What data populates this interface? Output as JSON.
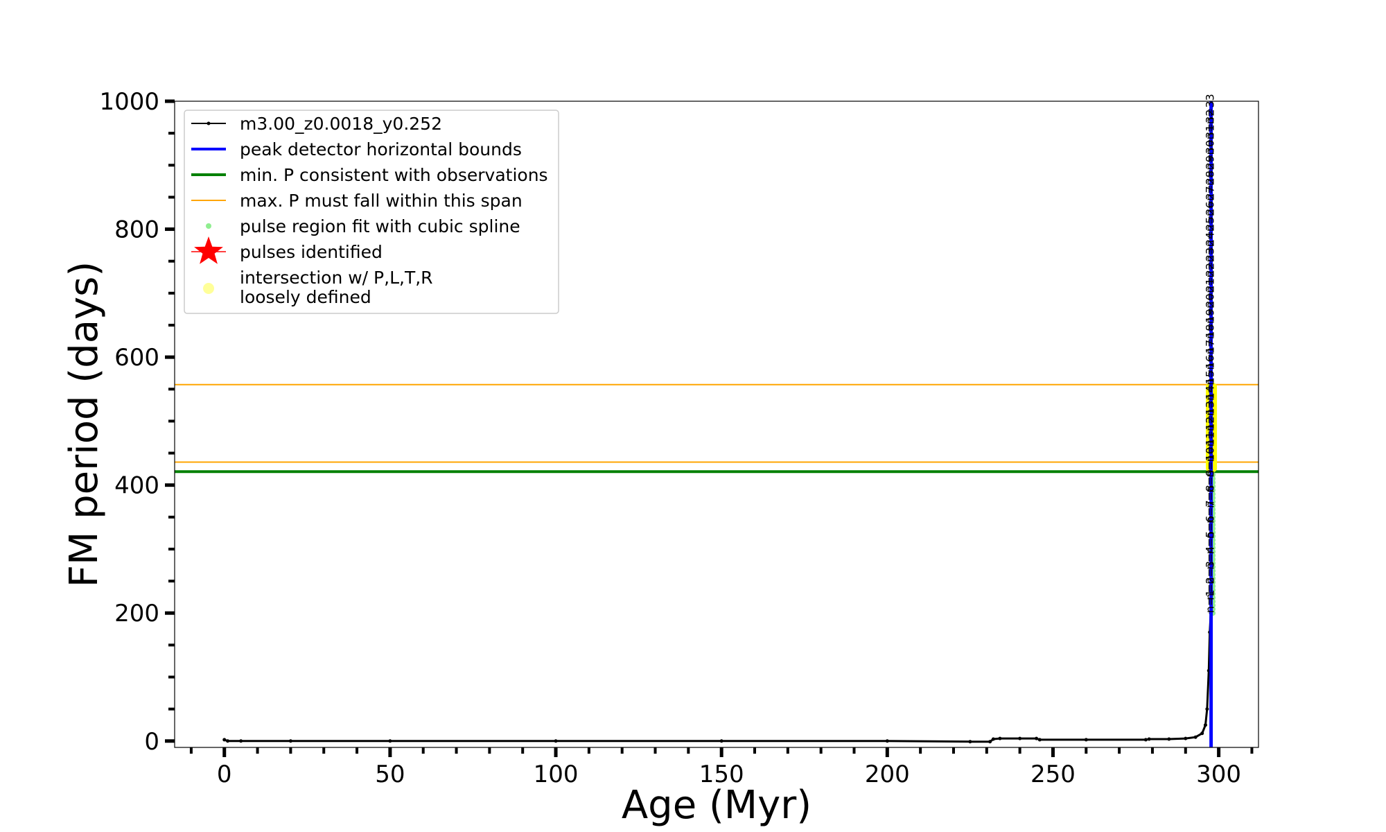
{
  "chart_data": {
    "type": "line",
    "xlabel": "Age (Myr)",
    "ylabel": "FM period (days)",
    "xlim": [
      -15,
      312
    ],
    "ylim": [
      -10,
      1000
    ],
    "x_ticks": [
      0,
      50,
      100,
      150,
      200,
      250,
      300
    ],
    "y_ticks": [
      0,
      200,
      400,
      600,
      800,
      1000
    ],
    "grid": false,
    "legend_position": "top-left",
    "legend": [
      {
        "label": "m3.00_z0.0018_y0.252",
        "color": "#000000",
        "marker": "line-dot"
      },
      {
        "label": "peak detector horizontal bounds",
        "color": "#0000ff",
        "marker": "line"
      },
      {
        "label": "min. P consistent with observations",
        "color": "#008000",
        "marker": "line"
      },
      {
        "label": "max. P must fall within this span",
        "color": "#ffa500",
        "marker": "thin-line"
      },
      {
        "label": "pulse region fit with cubic spline",
        "color": "#90ee90",
        "marker": "dot"
      },
      {
        "label": "pulses identified",
        "color": "#ff0000",
        "marker": "star"
      },
      {
        "label": "intersection w/ P,L,T,R",
        "label2": "loosely defined",
        "color": "#ffff99",
        "marker": "circle"
      }
    ],
    "series": [
      {
        "name": "m3.00_z0.0018_y0.252",
        "color": "#000000",
        "x": [
          0,
          1,
          5,
          20,
          50,
          100,
          150,
          200,
          225,
          231,
          232,
          234,
          240,
          245,
          246,
          260,
          278,
          279,
          285,
          290,
          293,
          295,
          296,
          296.5,
          297,
          297.3,
          297.6
        ],
        "y": [
          2,
          0,
          0,
          0,
          0,
          0,
          0,
          0,
          -1,
          -1,
          3,
          4,
          4,
          4,
          2,
          2,
          2,
          3,
          3,
          4,
          6,
          12,
          25,
          50,
          110,
          170,
          200
        ]
      }
    ],
    "vertical_bounds": {
      "label": "peak detector horizontal bounds",
      "color": "#0000ff",
      "x": [
        297.5,
        297.9
      ]
    },
    "min_period": {
      "label": "min. P consistent with observations",
      "color": "#008000",
      "y": 421
    },
    "max_period_span": {
      "label": "max. P must fall within this span",
      "color": "#ffa500",
      "y": [
        436,
        557
      ]
    },
    "pulse_fit_region": {
      "label": "pulse region fit with cubic spline",
      "color": "#90ee90",
      "x": 297.8,
      "y": [
        200,
        420
      ]
    },
    "intersection_region": {
      "label": "intersection w/ P,L,T,R loosely defined",
      "color": "#ffff00",
      "x": 297.8,
      "y": [
        420,
        560
      ]
    },
    "pulse_labels": {
      "x": 298.5,
      "labels": [
        "n=1",
        "n=2",
        "n=3",
        "n=4",
        "n=5",
        "n=6",
        "n=7",
        "n=8",
        "n=9",
        "n=10",
        "n=11",
        "n=12",
        "n=13",
        "n=14",
        "n=15",
        "n=16",
        "n=17",
        "n=18",
        "n=19",
        "n=20",
        "n=21",
        "n=22",
        "n=23",
        "n=24",
        "n=25",
        "n=26",
        "n=27",
        "n=28",
        "n=29",
        "n=30",
        "n=31",
        "n=32",
        "n=33"
      ],
      "y": [
        200,
        220,
        245,
        268,
        292,
        316,
        340,
        364,
        388,
        412,
        436,
        460,
        484,
        508,
        532,
        556,
        580,
        604,
        628,
        652,
        676,
        700,
        724,
        748,
        772,
        796,
        820,
        844,
        868,
        892,
        916,
        940,
        964
      ]
    }
  }
}
